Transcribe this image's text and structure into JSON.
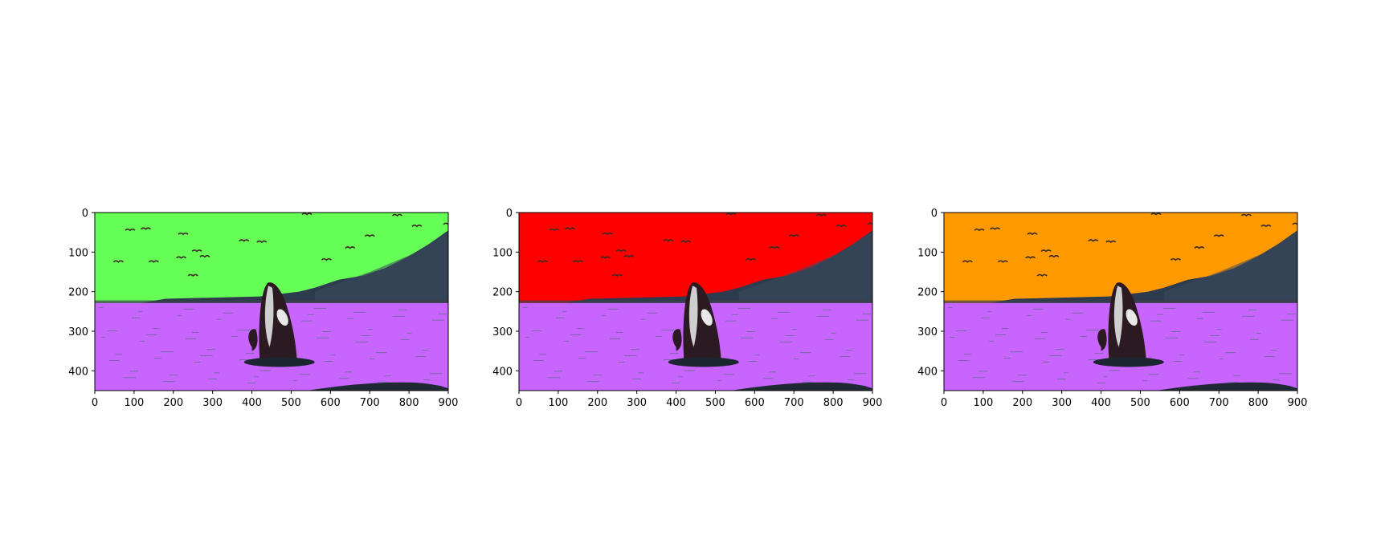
{
  "figure": {
    "background": "#ffffff"
  },
  "chart_data": [
    {
      "type": "image",
      "xlim": [
        0,
        900
      ],
      "ylim": [
        450,
        0
      ],
      "xticks": [
        "0",
        "100",
        "200",
        "300",
        "400",
        "500",
        "600",
        "700",
        "800",
        "900"
      ],
      "yticks": [
        "0",
        "100",
        "200",
        "300",
        "400"
      ],
      "regions": {
        "sky": "#66ff55",
        "water": "#c865ff",
        "land": "#2e3a4d"
      }
    },
    {
      "type": "image",
      "xlim": [
        0,
        900
      ],
      "ylim": [
        450,
        0
      ],
      "xticks": [
        "0",
        "100",
        "200",
        "300",
        "400",
        "500",
        "600",
        "700",
        "800",
        "900"
      ],
      "yticks": [
        "0",
        "100",
        "200",
        "300",
        "400"
      ],
      "regions": {
        "sky": "#ff0000",
        "water": "#c865ff",
        "land": "#2e3a4d"
      }
    },
    {
      "type": "image",
      "xlim": [
        0,
        900
      ],
      "ylim": [
        450,
        0
      ],
      "xticks": [
        "0",
        "100",
        "200",
        "300",
        "400",
        "500",
        "600",
        "700",
        "800",
        "900"
      ],
      "yticks": [
        "0",
        "100",
        "200",
        "300",
        "400"
      ],
      "regions": {
        "sky": "#ff9900",
        "water": "#c865ff",
        "land": "#2e3a4d"
      }
    }
  ]
}
